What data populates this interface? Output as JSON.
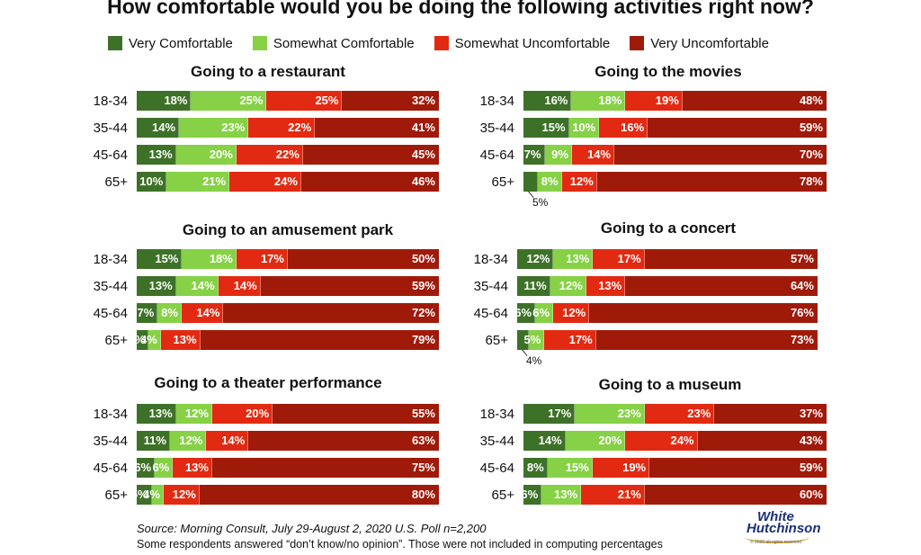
{
  "title": "How comfortable would you be doing the following activities right now?",
  "colors": {
    "very_comfortable": "#3e7128",
    "somewhat_comfortable": "#86d145",
    "somewhat_uncomfortable": "#e22a12",
    "very_uncomfortable": "#a01a0a"
  },
  "legend": [
    "Very Comfortable",
    "Somewhat Comfortable",
    "Somewhat Uncomfortable",
    "Very Uncomfortable"
  ],
  "chart_data": [
    {
      "type": "bar",
      "stacked": true,
      "orientation": "horizontal",
      "title": "Going to a restaurant",
      "categories": [
        "18-34",
        "35-44",
        "45-64",
        "65+"
      ],
      "series": [
        {
          "name": "Very Comfortable",
          "values": [
            18,
            14,
            13,
            10
          ]
        },
        {
          "name": "Somewhat Comfortable",
          "values": [
            25,
            23,
            20,
            21
          ]
        },
        {
          "name": "Somewhat Uncomfortable",
          "values": [
            25,
            22,
            22,
            24
          ]
        },
        {
          "name": "Very Uncomfortable",
          "values": [
            32,
            41,
            45,
            46
          ]
        }
      ]
    },
    {
      "type": "bar",
      "stacked": true,
      "orientation": "horizontal",
      "title": "Going to the movies",
      "categories": [
        "18-34",
        "35-44",
        "45-64",
        "65+"
      ],
      "series": [
        {
          "name": "Very Comfortable",
          "values": [
            16,
            15,
            7,
            5
          ]
        },
        {
          "name": "Somewhat Comfortable",
          "values": [
            18,
            10,
            9,
            8
          ]
        },
        {
          "name": "Somewhat Uncomfortable",
          "values": [
            19,
            16,
            14,
            12
          ]
        },
        {
          "name": "Very Uncomfortable",
          "values": [
            48,
            59,
            70,
            78
          ]
        }
      ],
      "callout": {
        "row": 3,
        "series": 0,
        "text": "5%"
      }
    },
    {
      "type": "bar",
      "stacked": true,
      "orientation": "horizontal",
      "title": "Going to an amusement park",
      "categories": [
        "18-34",
        "35-44",
        "45-64",
        "65+"
      ],
      "series": [
        {
          "name": "Very Comfortable",
          "values": [
            15,
            13,
            7,
            4
          ]
        },
        {
          "name": "Somewhat Comfortable",
          "values": [
            18,
            14,
            8,
            4
          ]
        },
        {
          "name": "Somewhat Uncomfortable",
          "values": [
            17,
            14,
            14,
            13
          ]
        },
        {
          "name": "Very Uncomfortable",
          "values": [
            50,
            59,
            72,
            79
          ]
        }
      ]
    },
    {
      "type": "bar",
      "stacked": true,
      "orientation": "horizontal",
      "title": "Going to a concert",
      "categories": [
        "18-34",
        "35-44",
        "45-64",
        "65+"
      ],
      "series": [
        {
          "name": "Very Comfortable",
          "values": [
            12,
            11,
            6,
            4
          ]
        },
        {
          "name": "Somewhat Comfortable",
          "values": [
            13,
            12,
            6,
            5
          ]
        },
        {
          "name": "Somewhat Uncomfortable",
          "values": [
            17,
            13,
            12,
            17
          ]
        },
        {
          "name": "Very Uncomfortable",
          "values": [
            57,
            64,
            76,
            73
          ]
        }
      ],
      "callout": {
        "row": 3,
        "series": 0,
        "text": "4%"
      }
    },
    {
      "type": "bar",
      "stacked": true,
      "orientation": "horizontal",
      "title": "Going to a theater performance",
      "categories": [
        "18-34",
        "35-44",
        "45-64",
        "65+"
      ],
      "series": [
        {
          "name": "Very Comfortable",
          "values": [
            13,
            11,
            6,
            5
          ]
        },
        {
          "name": "Somewhat Comfortable",
          "values": [
            12,
            12,
            6,
            4
          ]
        },
        {
          "name": "Somewhat Uncomfortable",
          "values": [
            20,
            14,
            13,
            12
          ]
        },
        {
          "name": "Very Uncomfortable",
          "values": [
            55,
            63,
            75,
            80
          ]
        }
      ]
    },
    {
      "type": "bar",
      "stacked": true,
      "orientation": "horizontal",
      "title": "Going to a museum",
      "categories": [
        "18-34",
        "35-44",
        "45-64",
        "65+"
      ],
      "series": [
        {
          "name": "Very Comfortable",
          "values": [
            17,
            14,
            8,
            6
          ]
        },
        {
          "name": "Somewhat Comfortable",
          "values": [
            23,
            20,
            15,
            13
          ]
        },
        {
          "name": "Somewhat Uncomfortable",
          "values": [
            23,
            24,
            19,
            21
          ]
        },
        {
          "name": "Very Uncomfortable",
          "values": [
            37,
            43,
            59,
            60
          ]
        }
      ]
    }
  ],
  "footer": {
    "source": "Source: Morning Consult, July 29-August 2, 2020 U.S.  Poll n=2,200",
    "note": "Some respondents answered “don’t know/no opinion”. Those were not included in computing percentages"
  },
  "logo": {
    "line1": "White",
    "line2": "Hutchinson",
    "small": "© 2020 all rights reserved"
  }
}
